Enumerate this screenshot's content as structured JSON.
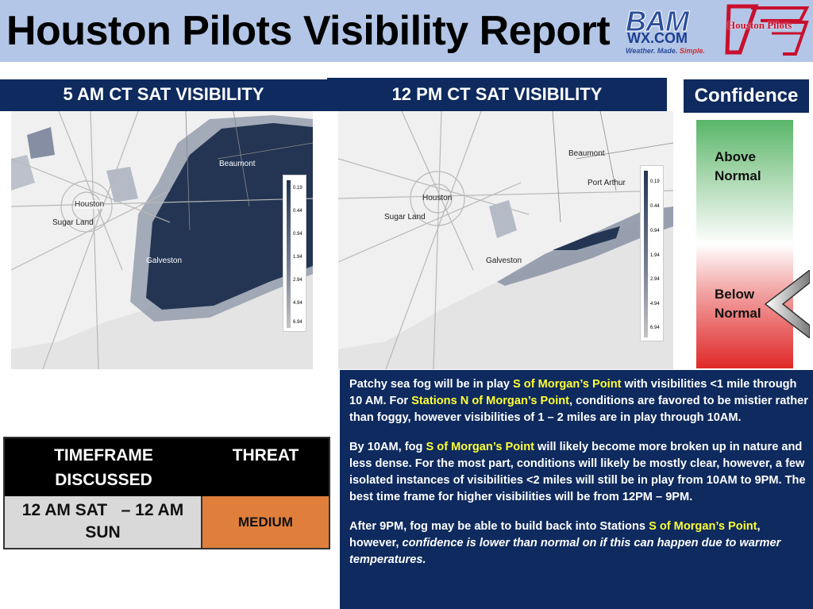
{
  "header": {
    "title": "Houston Pilots Visibility Report",
    "bam_logo": {
      "name": "BAM",
      "sub": "WX.COM",
      "tagline_a": "Weather. Made. ",
      "tagline_b": "Simple."
    },
    "hp_logo": {
      "name": "Houston Pilots"
    }
  },
  "left_panel": {
    "title": "5 AM CT SAT VISIBILITY",
    "labels": {
      "houston": "Houston",
      "sugar_land": "Sugar Land",
      "galveston": "Galveston",
      "beaumont": "Beaumont"
    },
    "legend": [
      "0.19",
      "0.44",
      "0.94",
      "1.94",
      "2.94",
      "4.94",
      "6.94"
    ]
  },
  "right_panel": {
    "title": "12 PM CT SAT VISIBILITY",
    "labels": {
      "houston": "Houston",
      "sugar_land": "Sugar Land",
      "galveston": "Galveston",
      "beaumont": "Beaumont",
      "port_arthur": "Port Arthur"
    },
    "legend": [
      "0.19",
      "0.44",
      "0.94",
      "1.94",
      "2.94",
      "4.94",
      "6.94"
    ]
  },
  "confidence": {
    "title": "Confidence",
    "above_1": "Above",
    "above_2": "Normal",
    "below_1": "Below",
    "below_2": "Normal",
    "indicator": "Below Normal"
  },
  "threat_table": {
    "col1_header_1": "TIMEFRAME",
    "col1_header_2": "DISCUSSED",
    "col2_header": "THREAT",
    "timeframe_1": "12 AM SAT   – 12 AM",
    "timeframe_2": "SUN",
    "threat": "MEDIUM",
    "threat_color": "#e07f3b"
  },
  "discussion": {
    "p1_a": "Patchy sea fog will be in play ",
    "p1_b": "S of Morgan’s Point",
    "p1_c": " with visibilities <1 mile through 10 AM. For ",
    "p1_d": "Stations N of Morgan’s Point",
    "p1_e": ", conditions are favored to be mistier rather than foggy, however visibilities of 1 – 2 miles are in play through 10AM.",
    "p2_a": "By 10AM, fog ",
    "p2_b": "S of Morgan’s Point",
    "p2_c": " will likely become more broken up in nature and less dense. For the most part, conditions will likely be mostly clear, however, a few isolated instances of visibilities <2 miles will still be in play from 10AM to 9PM. The best time frame for higher visibilities will be from 12PM – 9PM.",
    "p3_a": "After 9PM, fog may be able to build back into Stations ",
    "p3_b": "S of Morgan’s Point",
    "p3_c": ", however, ",
    "p3_d": "confidence is lower than normal on if this can happen due to warmer temperatures."
  },
  "colors": {
    "navy": "#0e2a5e",
    "header_bg": "#b3c6e7",
    "highlight": "#ffff33",
    "fog_dense": "#233552"
  }
}
